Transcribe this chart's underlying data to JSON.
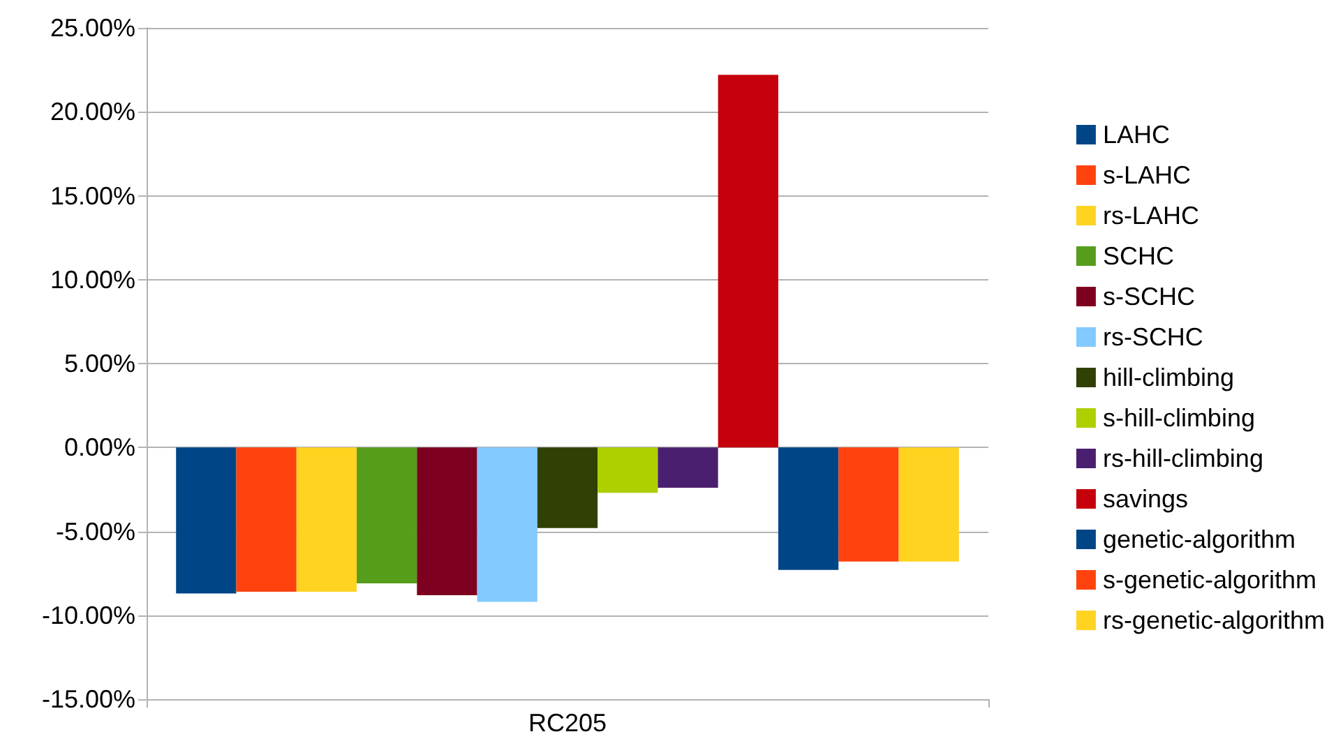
{
  "chart_data": {
    "type": "bar",
    "categories": [
      "RC205"
    ],
    "series": [
      {
        "name": "LAHC",
        "color": "#004586",
        "values": [
          -8.7
        ]
      },
      {
        "name": "s-LAHC",
        "color": "#ff420e",
        "values": [
          -8.6
        ]
      },
      {
        "name": "rs-LAHC",
        "color": "#ffd320",
        "values": [
          -8.6
        ]
      },
      {
        "name": "SCHC",
        "color": "#579d1c",
        "values": [
          -8.1
        ]
      },
      {
        "name": "s-SCHC",
        "color": "#7e0021",
        "values": [
          -8.8
        ]
      },
      {
        "name": "rs-SCHC",
        "color": "#83caff",
        "values": [
          -9.2
        ]
      },
      {
        "name": "hill-climbing",
        "color": "#314004",
        "values": [
          -4.8
        ]
      },
      {
        "name": "s-hill-climbing",
        "color": "#aecf00",
        "values": [
          -2.7
        ]
      },
      {
        "name": "rs-hill-climbing",
        "color": "#4b1f6f",
        "values": [
          -2.4
        ]
      },
      {
        "name": "savings",
        "color": "#c5000b",
        "values": [
          22.2
        ]
      },
      {
        "name": "genetic-algorithm",
        "color": "#004586",
        "values": [
          -7.3
        ]
      },
      {
        "name": "s-genetic-algorithm",
        "color": "#ff420e",
        "values": [
          -6.8
        ]
      },
      {
        "name": "rs-genetic-algorithm",
        "color": "#ffd320",
        "values": [
          -6.8
        ]
      }
    ],
    "ylim": [
      -15,
      25
    ],
    "yticks": [
      {
        "value": -15,
        "label": "-15.00%"
      },
      {
        "value": -10,
        "label": "-10.00%"
      },
      {
        "value": -5,
        "label": "-5.00%"
      },
      {
        "value": 0,
        "label": "0.00%"
      },
      {
        "value": 5,
        "label": "5.00%"
      },
      {
        "value": 10,
        "label": "10.00%"
      },
      {
        "value": 15,
        "label": "15.00%"
      },
      {
        "value": 20,
        "label": "20.00%"
      },
      {
        "value": 25,
        "label": "25.00%"
      }
    ],
    "grid": "y",
    "legend": "right"
  }
}
